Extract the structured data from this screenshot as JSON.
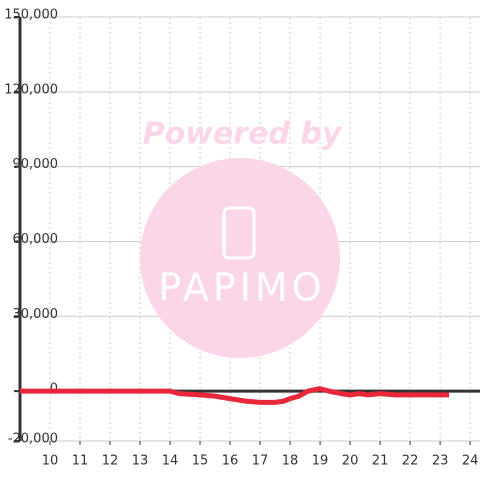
{
  "chart_data": {
    "type": "line",
    "watermark": [
      "Powered by",
      "PAPIMO"
    ],
    "x": [
      9,
      10,
      11,
      12,
      13,
      14,
      14.3,
      15,
      15.5,
      16,
      16.5,
      17,
      17.5,
      17.8,
      18,
      18.3,
      18.6,
      19,
      19.3,
      19.7,
      20,
      20.3,
      20.6,
      21,
      21.5,
      22,
      23.3
    ],
    "series": [
      {
        "color": "#e8273a",
        "values": [
          0,
          0,
          0,
          0,
          0,
          0,
          -1000,
          -1500,
          -2000,
          -3000,
          -4000,
          -4500,
          -4500,
          -4000,
          -3000,
          -2000,
          0,
          1000,
          0,
          -1000,
          -1500,
          -1000,
          -1500,
          -1000,
          -1500,
          -1500,
          -1500
        ]
      }
    ],
    "xlim": [
      9,
      24.33
    ],
    "xticks": [
      10,
      11,
      12,
      13,
      14,
      15,
      16,
      17,
      18,
      19,
      20,
      21,
      22,
      23,
      24
    ],
    "ylim": [
      -20000,
      150000
    ],
    "yticks": [
      {
        "value": -20000,
        "label": "-20,000"
      },
      0,
      {
        "value": 30000,
        "label": "30,000"
      },
      {
        "value": 60000,
        "label": "60,000"
      },
      {
        "value": 90000,
        "label": "90,000"
      },
      {
        "value": 120000,
        "label": "120,000"
      },
      {
        "value": 150000,
        "label": "150,000"
      }
    ],
    "grid": true
  }
}
